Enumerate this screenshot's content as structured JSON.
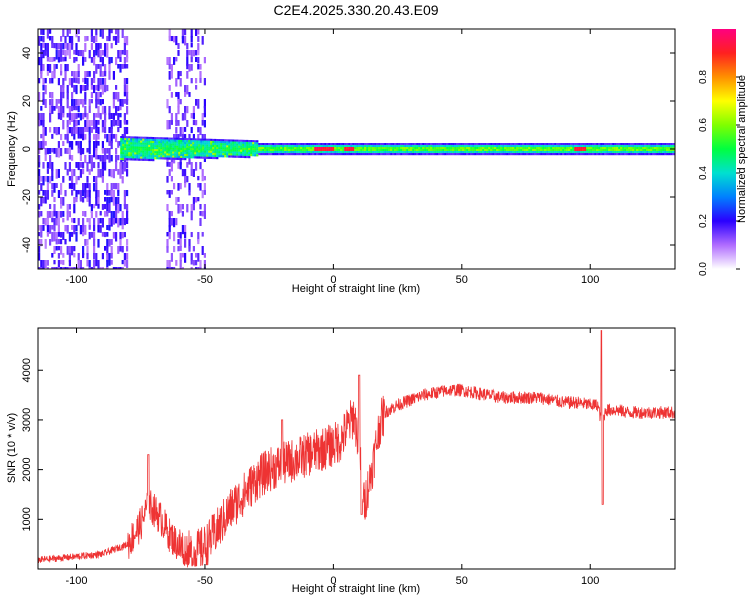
{
  "title": "C2E4.2025.330.20.43.E09",
  "chart_data": [
    {
      "type": "heatmap",
      "xlabel": "Height of straight line (km)",
      "ylabel": "Frequency (Hz)",
      "xlim": [
        -115,
        133
      ],
      "ylim": [
        -50,
        50
      ],
      "xticks": [
        -100,
        -50,
        0,
        50,
        100
      ],
      "yticks": [
        -40,
        -20,
        0,
        20,
        40
      ],
      "xtick_labels": [
        "-100",
        "-50",
        "0",
        "50",
        "100"
      ],
      "ytick_labels": [
        "-40",
        "-20",
        "0",
        "20",
        "40"
      ],
      "colorbar": {
        "label": "Normalized spectral amplitude",
        "range": [
          0,
          1
        ],
        "ticks": [
          0,
          0.2,
          0.4,
          0.6,
          0.8
        ],
        "tick_labels": [
          "0.0",
          "0.2",
          "0.4",
          "0.6",
          "0.8"
        ]
      },
      "features": {
        "noise_band_1_km": [
          -115,
          -80
        ],
        "noise_band_2_km": [
          -65,
          -50
        ],
        "carrier_freq_hz": 0
      }
    },
    {
      "type": "line",
      "xlabel": "Height of straight line (km)",
      "ylabel": "SNR (10 * v/v)",
      "xlim": [
        -115,
        133
      ],
      "ylim": [
        0,
        4850
      ],
      "xticks": [
        -100,
        -50,
        0,
        50,
        100
      ],
      "yticks": [
        1000,
        2000,
        3000,
        4000
      ],
      "xtick_labels": [
        "-100",
        "-50",
        "0",
        "50",
        "100"
      ],
      "ytick_labels": [
        "1000",
        "2000",
        "3000",
        "4000"
      ],
      "color": "#ee3333",
      "series": [
        {
          "x": [
            -115,
            -100,
            -90,
            -80,
            -75,
            -72,
            -70,
            -67,
            -64,
            -60,
            -55,
            -50,
            -45,
            -40,
            -35,
            -30,
            -25,
            -20,
            -15,
            -10,
            -5,
            0,
            3,
            5,
            8,
            10,
            12,
            15,
            18,
            20,
            25,
            30,
            35,
            40,
            45,
            50,
            55,
            60,
            65,
            70,
            75,
            80,
            85,
            90,
            95,
            100,
            103,
            104.5,
            106,
            110,
            115,
            120,
            125,
            133
          ],
          "y": [
            180,
            250,
            300,
            500,
            900,
            1300,
            1200,
            1000,
            700,
            450,
            300,
            450,
            800,
            1200,
            1500,
            1800,
            2000,
            2100,
            2200,
            2300,
            2400,
            2500,
            2600,
            2800,
            3100,
            2500,
            1300,
            2000,
            2900,
            3150,
            3300,
            3400,
            3500,
            3550,
            3600,
            3600,
            3550,
            3500,
            3450,
            3450,
            3450,
            3450,
            3400,
            3350,
            3350,
            3300,
            3300,
            2900,
            3200,
            3200,
            3150,
            3150,
            3150,
            3150
          ],
          "spikes": [
            {
              "x": -72,
              "y": 2300
            },
            {
              "x": -20,
              "y": 3000
            },
            {
              "x": 10,
              "y": 3900
            },
            {
              "x": 11,
              "y": 1100
            },
            {
              "x": 104.5,
              "y": 4800
            },
            {
              "x": 104.8,
              "y": 1300
            }
          ]
        }
      ]
    }
  ]
}
